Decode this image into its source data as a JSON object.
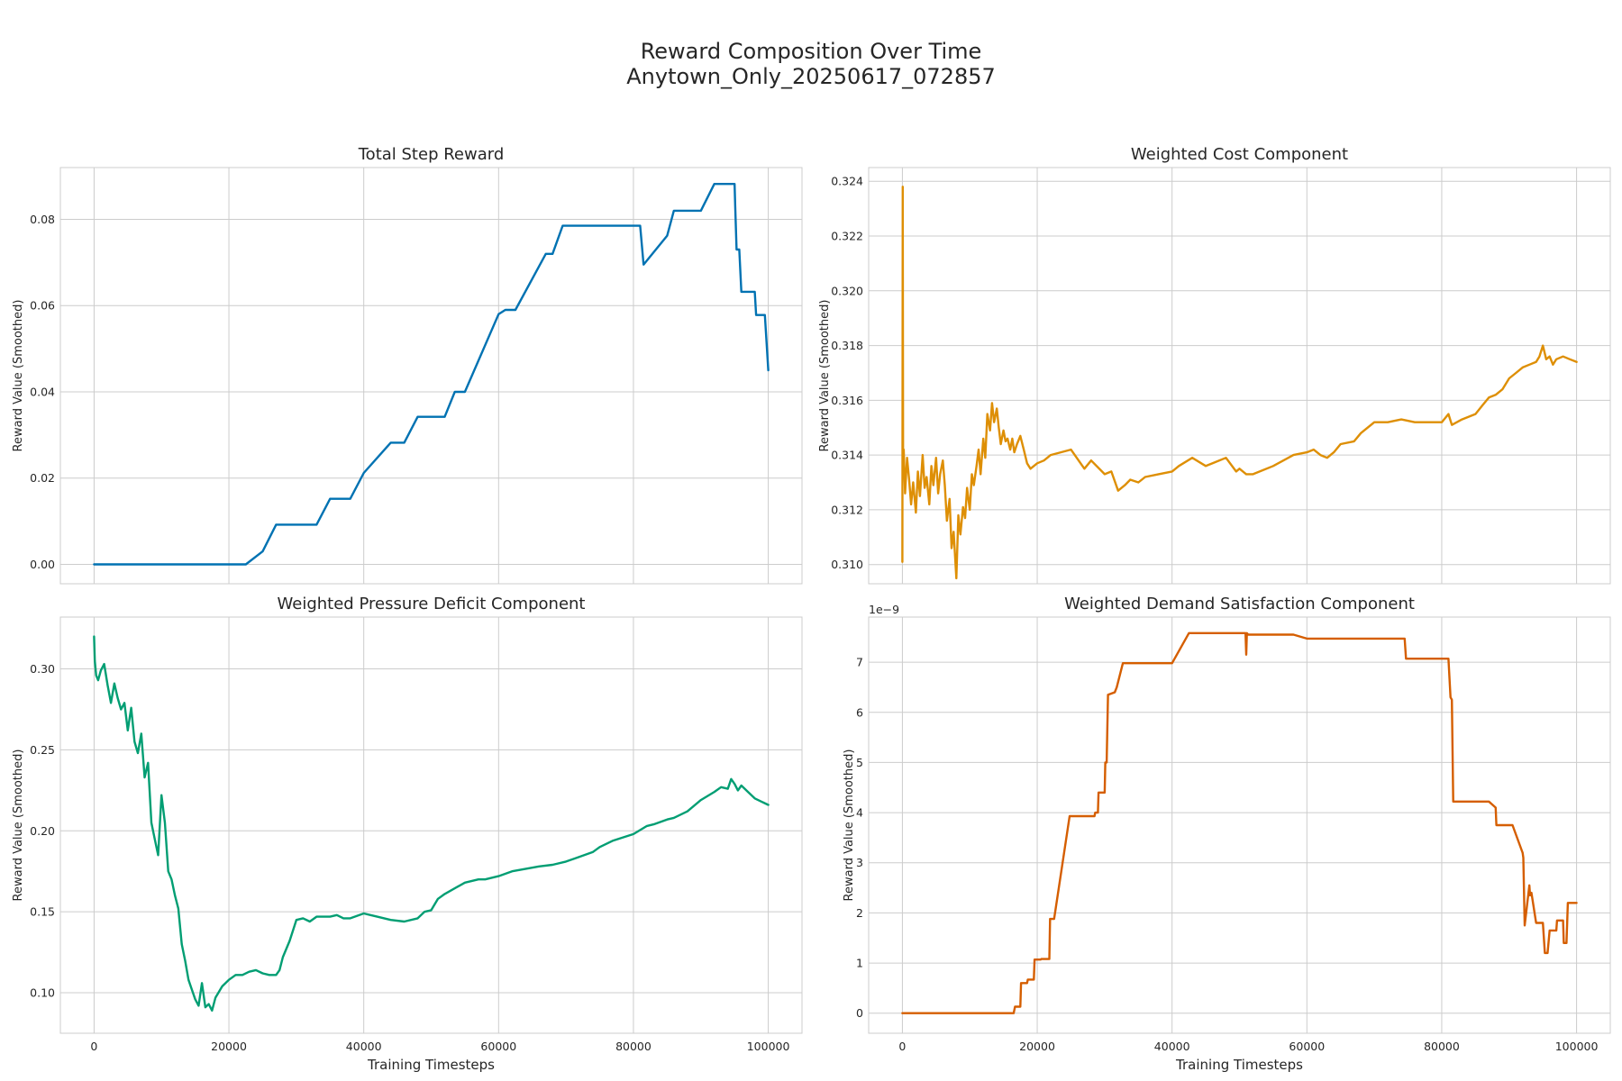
{
  "suptitle": {
    "line1": "Reward Composition Over Time",
    "line2": "Anytown_Only_20250617_072857"
  },
  "chart_data": [
    {
      "type": "line",
      "title": "Total Step Reward",
      "xlabel": "",
      "ylabel": "Reward Value (Smoothed)",
      "color": "#0072b2",
      "xlim": [
        -5000,
        105000
      ],
      "ylim": [
        -0.0045,
        0.092
      ],
      "xticks": [
        0,
        20000,
        40000,
        60000,
        80000,
        100000
      ],
      "xtick_labels_visible": false,
      "yticks": [
        0.0,
        0.02,
        0.04,
        0.06,
        0.08
      ],
      "ytick_labels": [
        "0.00",
        "0.02",
        "0.04",
        "0.06",
        "0.08"
      ],
      "grid": true,
      "x": [
        0,
        22500,
        25000,
        27000,
        33000,
        35000,
        38000,
        40000,
        44000,
        46000,
        48000,
        50000,
        52000,
        53500,
        55000,
        60000,
        61000,
        62500,
        67000,
        68000,
        69500,
        81000,
        81500,
        85000,
        86000,
        90000,
        92000,
        95000,
        95100,
        95300,
        95700,
        96000,
        98000,
        98200,
        99500,
        100000
      ],
      "y": [
        0.0,
        0.0,
        0.003,
        0.0092,
        0.0092,
        0.0152,
        0.0152,
        0.0212,
        0.0282,
        0.0282,
        0.0342,
        0.0342,
        0.0342,
        0.04,
        0.04,
        0.058,
        0.059,
        0.059,
        0.072,
        0.072,
        0.0785,
        0.0785,
        0.0695,
        0.0762,
        0.082,
        0.082,
        0.0882,
        0.0882,
        0.083,
        0.073,
        0.073,
        0.0632,
        0.0632,
        0.0578,
        0.0578,
        0.045
      ]
    },
    {
      "type": "line",
      "title": "Weighted Cost Component",
      "xlabel": "",
      "ylabel": "Reward Value (Smoothed)",
      "color": "#de8f05",
      "xlim": [
        -5000,
        105000
      ],
      "ylim": [
        0.3093,
        0.3245
      ],
      "xticks": [
        0,
        20000,
        40000,
        60000,
        80000,
        100000
      ],
      "xtick_labels_visible": false,
      "yticks": [
        0.31,
        0.312,
        0.314,
        0.316,
        0.318,
        0.32,
        0.322,
        0.324
      ],
      "ytick_labels": [
        "0.310",
        "0.312",
        "0.314",
        "0.316",
        "0.318",
        "0.320",
        "0.322",
        "0.324"
      ],
      "grid": true,
      "x": [
        0,
        50,
        100,
        200,
        400,
        700,
        1000,
        1300,
        1600,
        2000,
        2300,
        2600,
        3000,
        3300,
        3600,
        4000,
        4300,
        4600,
        5000,
        5300,
        5600,
        6000,
        6300,
        6600,
        7000,
        7300,
        7600,
        8000,
        8300,
        8600,
        9000,
        9300,
        9600,
        10000,
        10300,
        10600,
        11000,
        11300,
        11600,
        12000,
        12300,
        12600,
        13000,
        13300,
        13600,
        14000,
        14300,
        14600,
        15000,
        15300,
        15600,
        16000,
        16300,
        16600,
        17000,
        17500,
        18000,
        18500,
        19000,
        20000,
        21000,
        22000,
        25000,
        27000,
        28000,
        30000,
        31000,
        32000,
        33000,
        33800,
        35000,
        36000,
        38000,
        40000,
        41000,
        43000,
        45000,
        46000,
        48000,
        49500,
        50000,
        51000,
        52000,
        53000,
        55000,
        58000,
        60000,
        61000,
        62000,
        63000,
        64000,
        65000,
        67000,
        68000,
        70000,
        72000,
        74000,
        76000,
        78000,
        80000,
        81000,
        81500,
        83000,
        84000,
        85000,
        86000,
        87000,
        88000,
        89000,
        90000,
        91000,
        92000,
        93000,
        94000,
        94500,
        95000,
        95500,
        96000,
        96500,
        97000,
        98000,
        99000,
        100000
      ],
      "y": [
        0.3101,
        0.3238,
        0.3135,
        0.3142,
        0.3126,
        0.3139,
        0.3131,
        0.3122,
        0.313,
        0.3119,
        0.3134,
        0.3125,
        0.314,
        0.3128,
        0.3132,
        0.3122,
        0.3136,
        0.3129,
        0.3139,
        0.3126,
        0.3133,
        0.3138,
        0.3129,
        0.3116,
        0.3124,
        0.3106,
        0.3112,
        0.3095,
        0.3118,
        0.3111,
        0.3121,
        0.3117,
        0.3128,
        0.312,
        0.3133,
        0.3129,
        0.3136,
        0.3142,
        0.3133,
        0.3146,
        0.3139,
        0.3155,
        0.3149,
        0.3159,
        0.3152,
        0.3157,
        0.315,
        0.3144,
        0.3149,
        0.3145,
        0.3146,
        0.3142,
        0.3146,
        0.3141,
        0.3144,
        0.3147,
        0.3142,
        0.3137,
        0.3135,
        0.3137,
        0.3138,
        0.314,
        0.3142,
        0.3135,
        0.3138,
        0.3133,
        0.3134,
        0.3127,
        0.3129,
        0.3131,
        0.313,
        0.3132,
        0.3133,
        0.3134,
        0.3136,
        0.3139,
        0.3136,
        0.3137,
        0.3139,
        0.3134,
        0.3135,
        0.3133,
        0.3133,
        0.3134,
        0.3136,
        0.314,
        0.3141,
        0.3142,
        0.314,
        0.3139,
        0.3141,
        0.3144,
        0.3145,
        0.3148,
        0.3152,
        0.3152,
        0.3153,
        0.3152,
        0.3152,
        0.3152,
        0.3155,
        0.3151,
        0.3153,
        0.3154,
        0.3155,
        0.3158,
        0.3161,
        0.3162,
        0.3164,
        0.3168,
        0.317,
        0.3172,
        0.3173,
        0.3174,
        0.3176,
        0.318,
        0.3175,
        0.3176,
        0.3173,
        0.3175,
        0.3176,
        0.3175,
        0.3174
      ]
    },
    {
      "type": "line",
      "title": "Weighted Pressure Deficit Component",
      "xlabel": "Training Timesteps",
      "ylabel": "Reward Value (Smoothed)",
      "color": "#029e73",
      "xlim": [
        -5000,
        105000
      ],
      "ylim": [
        0.075,
        0.332
      ],
      "xticks": [
        0,
        20000,
        40000,
        60000,
        80000,
        100000
      ],
      "xtick_labels": [
        "0",
        "20000",
        "40000",
        "60000",
        "80000",
        "100000"
      ],
      "yticks": [
        0.1,
        0.15,
        0.2,
        0.25,
        0.3
      ],
      "ytick_labels": [
        "0.10",
        "0.15",
        "0.20",
        "0.25",
        "0.30"
      ],
      "grid": true,
      "x": [
        0,
        100,
        300,
        600,
        1000,
        1500,
        2000,
        2500,
        3000,
        3500,
        4000,
        4500,
        5000,
        5500,
        6000,
        6500,
        7000,
        7500,
        8000,
        8500,
        9000,
        9500,
        10000,
        10500,
        11000,
        11500,
        12000,
        12500,
        13000,
        13500,
        14000,
        14500,
        15000,
        15500,
        16000,
        16500,
        17000,
        17500,
        18000,
        19000,
        20000,
        21000,
        22000,
        23000,
        24000,
        25000,
        26000,
        27000,
        27500,
        28000,
        29000,
        30000,
        31000,
        32000,
        33000,
        35000,
        36000,
        37000,
        38000,
        40000,
        41000,
        42000,
        44000,
        46000,
        48000,
        49000,
        50000,
        51000,
        52000,
        55000,
        57000,
        58000,
        60000,
        62000,
        66000,
        68000,
        70000,
        72000,
        74000,
        75000,
        77000,
        80000,
        82000,
        83000,
        85000,
        86000,
        88000,
        90000,
        92000,
        93000,
        94000,
        94500,
        95000,
        95500,
        96000,
        97000,
        98000,
        99000,
        100000
      ],
      "y": [
        0.32,
        0.305,
        0.296,
        0.293,
        0.299,
        0.303,
        0.29,
        0.279,
        0.291,
        0.282,
        0.275,
        0.279,
        0.262,
        0.276,
        0.255,
        0.248,
        0.26,
        0.233,
        0.242,
        0.205,
        0.195,
        0.185,
        0.222,
        0.205,
        0.175,
        0.17,
        0.16,
        0.152,
        0.13,
        0.12,
        0.108,
        0.102,
        0.096,
        0.092,
        0.106,
        0.091,
        0.093,
        0.089,
        0.097,
        0.104,
        0.108,
        0.111,
        0.111,
        0.113,
        0.114,
        0.112,
        0.111,
        0.111,
        0.114,
        0.122,
        0.132,
        0.145,
        0.146,
        0.144,
        0.147,
        0.147,
        0.148,
        0.146,
        0.146,
        0.149,
        0.148,
        0.147,
        0.145,
        0.144,
        0.146,
        0.15,
        0.151,
        0.158,
        0.161,
        0.168,
        0.17,
        0.17,
        0.172,
        0.175,
        0.178,
        0.179,
        0.181,
        0.184,
        0.187,
        0.19,
        0.194,
        0.198,
        0.203,
        0.204,
        0.207,
        0.208,
        0.212,
        0.219,
        0.224,
        0.227,
        0.226,
        0.232,
        0.229,
        0.225,
        0.228,
        0.224,
        0.22,
        0.218,
        0.216
      ]
    },
    {
      "type": "line",
      "title": "Weighted Demand Satisfaction Component",
      "xlabel": "Training Timesteps",
      "ylabel": "Reward Value (Smoothed)",
      "y_offset_label": "1e−9",
      "color": "#d55e00",
      "xlim": [
        -5000,
        105000
      ],
      "ylim": [
        -0.4,
        7.9
      ],
      "xticks": [
        0,
        20000,
        40000,
        60000,
        80000,
        100000
      ],
      "xtick_labels": [
        "0",
        "20000",
        "40000",
        "60000",
        "80000",
        "100000"
      ],
      "yticks": [
        0,
        1,
        2,
        3,
        4,
        5,
        6,
        7
      ],
      "ytick_labels": [
        "0",
        "1",
        "2",
        "3",
        "4",
        "5",
        "6",
        "7"
      ],
      "grid": true,
      "x": [
        0,
        16500,
        16700,
        17500,
        17600,
        18500,
        18600,
        19500,
        19600,
        20500,
        20600,
        21800,
        21900,
        22500,
        24800,
        28500,
        28600,
        29000,
        29100,
        30000,
        30100,
        30300,
        30500,
        31500,
        31800,
        32700,
        40000,
        42500,
        50900,
        51000,
        51100,
        51300,
        58000,
        60000,
        74500,
        74700,
        81000,
        81300,
        81500,
        81700,
        82000,
        87000,
        88000,
        88100,
        90500,
        92000,
        92100,
        92300,
        93000,
        93100,
        93300,
        94000,
        95000,
        95300,
        95700,
        96000,
        97000,
        97100,
        98000,
        98100,
        98500,
        98700,
        99000,
        100000
      ],
      "y": [
        0.0,
        0.0,
        0.13,
        0.13,
        0.6,
        0.6,
        0.67,
        0.67,
        1.07,
        1.07,
        1.08,
        1.08,
        1.88,
        1.88,
        3.93,
        3.93,
        4.0,
        4.0,
        4.4,
        4.4,
        5.0,
        5.0,
        6.35,
        6.4,
        6.5,
        6.98,
        6.98,
        7.58,
        7.58,
        7.15,
        7.58,
        7.55,
        7.55,
        7.47,
        7.47,
        7.07,
        7.07,
        6.3,
        6.25,
        4.22,
        4.22,
        4.22,
        4.1,
        3.75,
        3.75,
        3.2,
        3.1,
        1.75,
        2.55,
        2.35,
        2.4,
        1.8,
        1.8,
        1.2,
        1.2,
        1.65,
        1.65,
        1.85,
        1.85,
        1.4,
        1.4,
        2.2,
        2.2,
        2.2
      ]
    }
  ]
}
